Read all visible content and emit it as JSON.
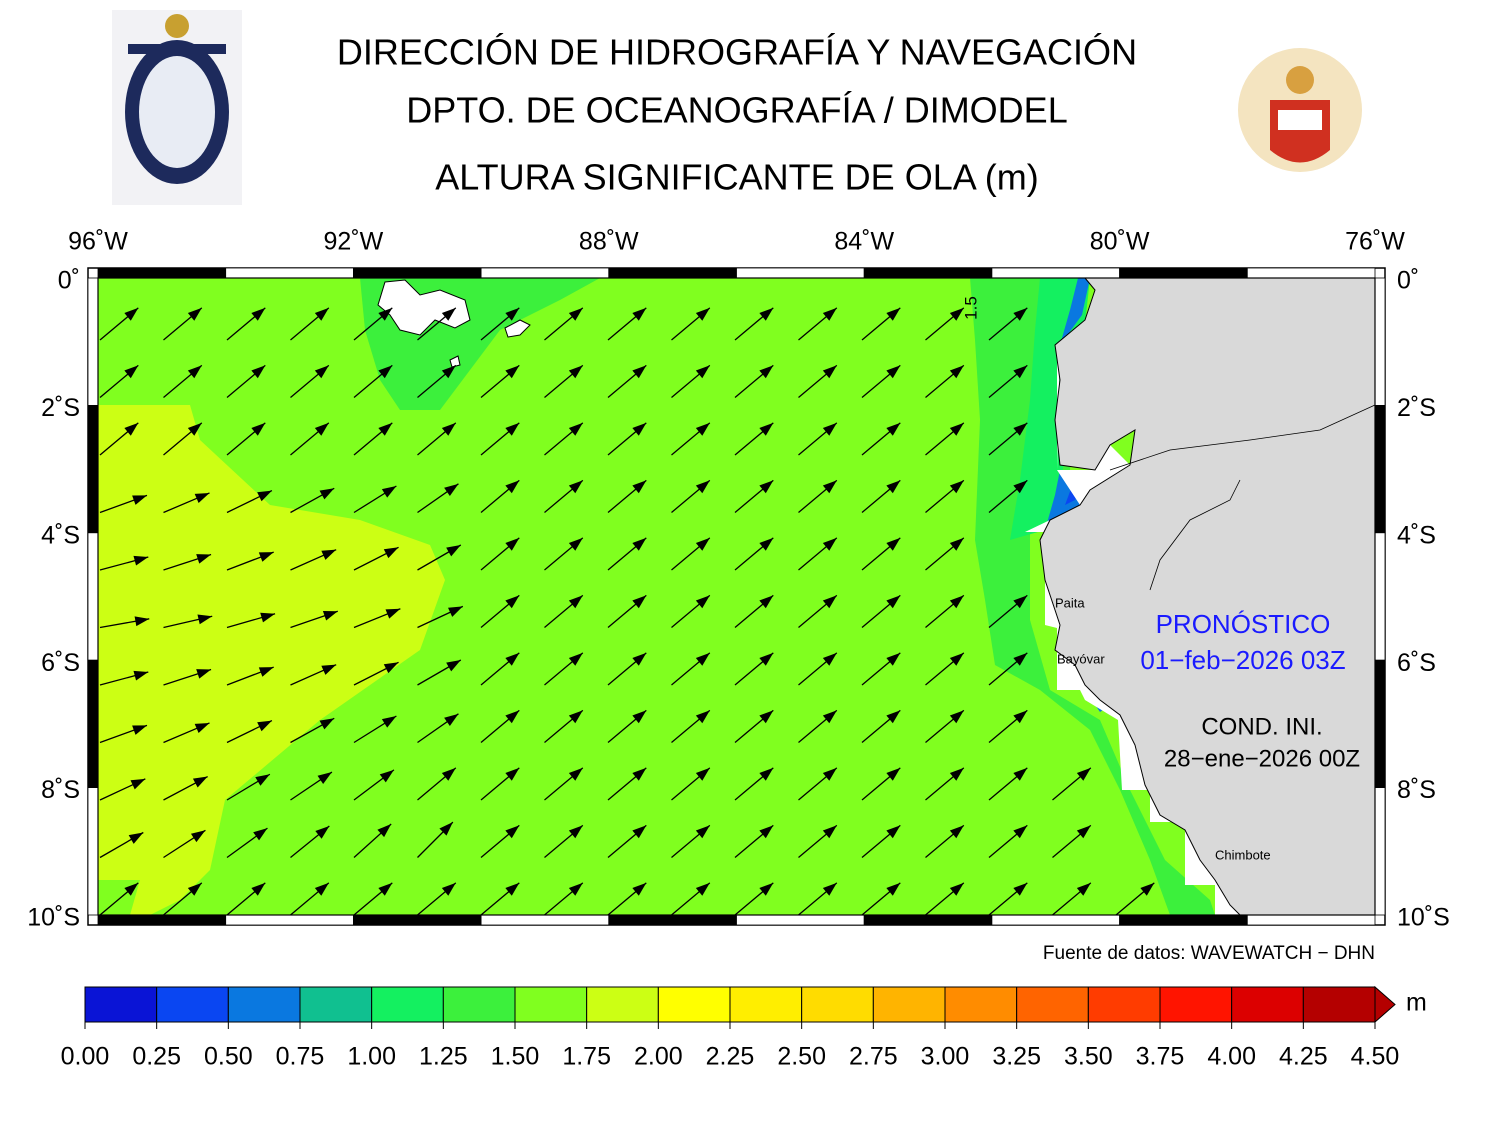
{
  "header": {
    "line1": "DIRECCIÓN DE HIDROGRAFÍA Y NAVEGACIÓN",
    "line2": "DPTO. DE OCEANOGRAFÍA / DIMODEL",
    "title": "ALTURA SIGNIFICANTE DE OLA (m)"
  },
  "map": {
    "lon_labels": [
      "96˚W",
      "92˚W",
      "88˚W",
      "84˚W",
      "80˚W",
      "76˚W"
    ],
    "lat_labels": [
      "0˚",
      "2˚S",
      "4˚S",
      "6˚S",
      "8˚S",
      "10˚S"
    ],
    "contour_label": "1.5",
    "places": [
      "Paita",
      "Bayóvar",
      "Chimbote"
    ],
    "forecast": {
      "label": "PRONÓSTICO",
      "time": "01−feb−2026 03Z"
    },
    "initial": {
      "label": "COND. INI.",
      "time": "28−ene−2026 00Z"
    },
    "source": "Fuente de datos: WAVEWATCH − DHN"
  },
  "colorbar": {
    "unit": "m",
    "ticks": [
      "0.00",
      "0.25",
      "0.50",
      "0.75",
      "1.00",
      "1.25",
      "1.50",
      "1.75",
      "2.00",
      "2.25",
      "2.50",
      "2.75",
      "3.00",
      "3.25",
      "3.50",
      "3.75",
      "4.00",
      "4.25",
      "4.50"
    ],
    "colors": [
      "#0a14d6",
      "#0a46f2",
      "#0a78e0",
      "#10c090",
      "#14f060",
      "#3cf03c",
      "#80ff1f",
      "#ccff14",
      "#ffff00",
      "#ffee00",
      "#ffdc00",
      "#ffb400",
      "#ff8c00",
      "#ff6400",
      "#ff3c00",
      "#ff1400",
      "#dc0000",
      "#b40000"
    ]
  }
}
